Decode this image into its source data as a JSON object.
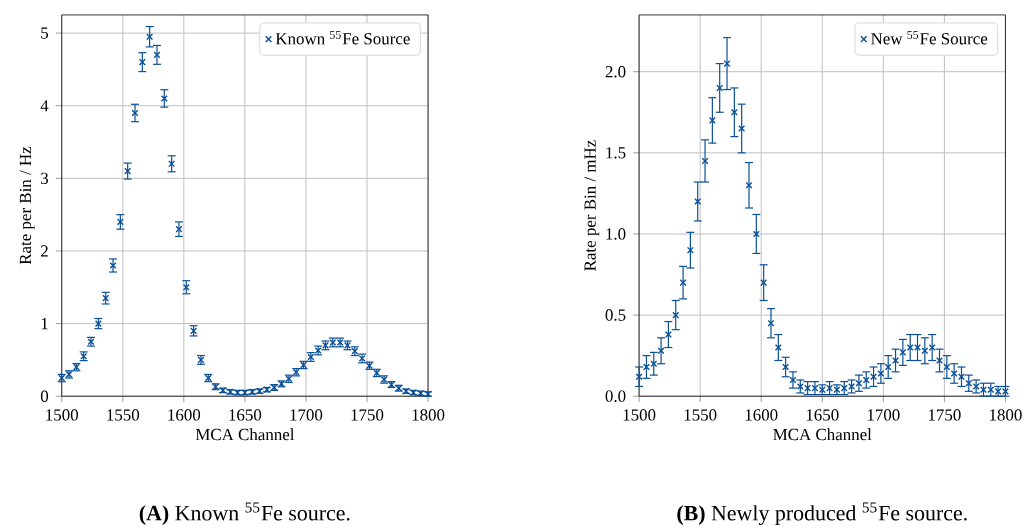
{
  "chart_data": [
    {
      "type": "scatter",
      "xlabel": "MCA Channel",
      "ylabel": "Rate per Bin / Hz",
      "xlim": [
        1500,
        1800
      ],
      "ylim": [
        0,
        5.25
      ],
      "xticks": [
        1500,
        1550,
        1600,
        1650,
        1700,
        1750,
        1800
      ],
      "yticks": [
        0,
        1,
        2,
        3,
        4,
        5
      ],
      "grid": true,
      "legend": "top right",
      "marker": "cross",
      "annotations": [
        "**(A)** Known $^{55}$Fe source."
      ],
      "x": [
        1500,
        1506,
        1512,
        1518,
        1524,
        1530,
        1536,
        1542,
        1548,
        1554,
        1560,
        1566,
        1572,
        1578,
        1584,
        1590,
        1596,
        1602,
        1608,
        1614,
        1620,
        1626,
        1632,
        1638,
        1644,
        1650,
        1656,
        1662,
        1668,
        1674,
        1680,
        1686,
        1692,
        1698,
        1704,
        1710,
        1716,
        1722,
        1728,
        1734,
        1740,
        1746,
        1752,
        1758,
        1764,
        1770,
        1776,
        1782,
        1788,
        1794,
        1800
      ],
      "series": [
        {
          "name": "Known $^{55}$Fe Source",
          "color": "#0a5096",
          "values": [
            0.25,
            0.3,
            0.4,
            0.55,
            0.75,
            1.0,
            1.35,
            1.8,
            2.4,
            3.1,
            3.9,
            4.6,
            4.95,
            4.7,
            4.1,
            3.2,
            2.3,
            1.5,
            0.9,
            0.5,
            0.25,
            0.13,
            0.08,
            0.06,
            0.05,
            0.05,
            0.06,
            0.07,
            0.09,
            0.12,
            0.17,
            0.24,
            0.33,
            0.43,
            0.54,
            0.63,
            0.7,
            0.74,
            0.74,
            0.7,
            0.62,
            0.52,
            0.42,
            0.32,
            0.23,
            0.16,
            0.11,
            0.07,
            0.05,
            0.04,
            0.03
          ],
          "errors": [
            0.05,
            0.05,
            0.05,
            0.06,
            0.06,
            0.07,
            0.08,
            0.09,
            0.1,
            0.11,
            0.12,
            0.13,
            0.14,
            0.13,
            0.12,
            0.11,
            0.1,
            0.09,
            0.07,
            0.06,
            0.05,
            0.04,
            0.03,
            0.03,
            0.03,
            0.03,
            0.03,
            0.03,
            0.03,
            0.04,
            0.04,
            0.05,
            0.05,
            0.05,
            0.06,
            0.06,
            0.06,
            0.06,
            0.06,
            0.06,
            0.06,
            0.06,
            0.05,
            0.05,
            0.05,
            0.04,
            0.04,
            0.03,
            0.03,
            0.03,
            0.03
          ]
        }
      ]
    },
    {
      "type": "scatter",
      "xlabel": "MCA Channel",
      "ylabel": "Rate per Bin / mHz",
      "xlim": [
        1500,
        1800
      ],
      "ylim": [
        0,
        2.35
      ],
      "xticks": [
        1500,
        1550,
        1600,
        1650,
        1700,
        1750,
        1800
      ],
      "yticks": [
        {
          "value": 0,
          "label": "0.0"
        },
        {
          "value": 0.5,
          "label": "0.5"
        },
        {
          "value": 1,
          "label": "1.0"
        },
        {
          "value": 1.5,
          "label": "1.5"
        },
        {
          "value": 2,
          "label": "2.0"
        }
      ],
      "grid": true,
      "legend": "top right",
      "marker": "cross",
      "annotations": [
        "**(B)** Newly produced $^{55}$Fe source."
      ],
      "x": [
        1500,
        1506,
        1512,
        1518,
        1524,
        1530,
        1536,
        1542,
        1548,
        1554,
        1560,
        1566,
        1572,
        1578,
        1584,
        1590,
        1596,
        1602,
        1608,
        1614,
        1620,
        1626,
        1632,
        1638,
        1644,
        1650,
        1656,
        1662,
        1668,
        1674,
        1680,
        1686,
        1692,
        1698,
        1704,
        1710,
        1716,
        1722,
        1728,
        1734,
        1740,
        1746,
        1752,
        1758,
        1764,
        1770,
        1776,
        1782,
        1788,
        1794,
        1800
      ],
      "series": [
        {
          "name": "New $^{55}$Fe Source",
          "color": "#0a5096",
          "values": [
            0.12,
            0.18,
            0.2,
            0.28,
            0.38,
            0.5,
            0.7,
            0.9,
            1.2,
            1.45,
            1.7,
            1.9,
            2.05,
            1.75,
            1.65,
            1.3,
            1.0,
            0.7,
            0.45,
            0.3,
            0.18,
            0.1,
            0.06,
            0.05,
            0.05,
            0.04,
            0.05,
            0.04,
            0.05,
            0.06,
            0.08,
            0.1,
            0.12,
            0.14,
            0.18,
            0.22,
            0.27,
            0.3,
            0.3,
            0.28,
            0.3,
            0.22,
            0.18,
            0.14,
            0.12,
            0.08,
            0.06,
            0.04,
            0.04,
            0.03,
            0.03
          ],
          "errors": [
            0.06,
            0.07,
            0.07,
            0.08,
            0.08,
            0.09,
            0.1,
            0.11,
            0.12,
            0.13,
            0.14,
            0.15,
            0.16,
            0.15,
            0.15,
            0.14,
            0.12,
            0.11,
            0.09,
            0.08,
            0.06,
            0.05,
            0.04,
            0.04,
            0.04,
            0.03,
            0.04,
            0.03,
            0.04,
            0.04,
            0.05,
            0.05,
            0.06,
            0.06,
            0.07,
            0.07,
            0.08,
            0.08,
            0.08,
            0.08,
            0.08,
            0.07,
            0.07,
            0.06,
            0.06,
            0.05,
            0.04,
            0.04,
            0.04,
            0.03,
            0.03
          ]
        }
      ]
    }
  ]
}
